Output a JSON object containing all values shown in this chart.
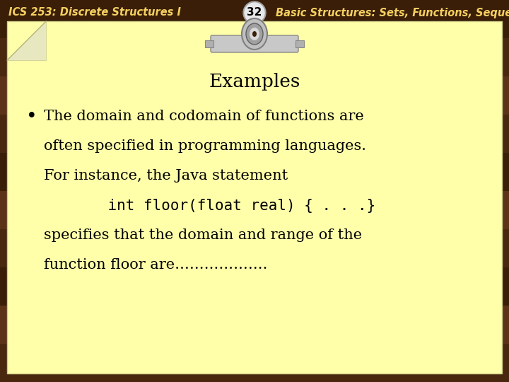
{
  "title_left": "ICS 253: Discrete Structures I",
  "title_right": "Basic Structures: Sets, Functions, Sequences and Sums",
  "slide_number": "32",
  "section_title": "Examples",
  "bullet_text_line1": "The domain and codomain of functions are",
  "bullet_text_line2": "often specified in programming languages.",
  "bullet_text_line3": "For instance, the Java statement",
  "code_line": "    int floor(float real) { . . .}",
  "body_text_line4": "specifies that the domain and range of the",
  "body_text_line5": "function floor are……………….",
  "bg_wood_dark": "#3d2008",
  "bg_wood_mid": "#5c3318",
  "note_bg_color": "#ffffaa",
  "note_curl_color": "#e8e8c0",
  "header_text_color": "#f5d060",
  "body_text_color": "#000000",
  "clip_color1": "#d0d0d0",
  "clip_color2": "#a0a0a0",
  "clip_color3": "#e8e8e8",
  "title_fontsize": 10.5,
  "body_fontsize": 15,
  "section_fontsize": 19,
  "slide_num_fontsize": 11
}
